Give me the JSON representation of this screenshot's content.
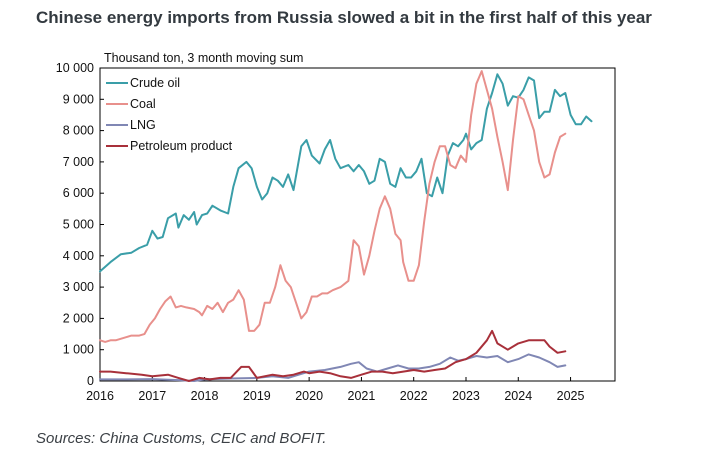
{
  "page": {
    "title": "Chinese energy imports from Russia slowed a bit in the first half of this year",
    "source": "Sources: China Customs, CEIC and BOFIT."
  },
  "chart_data": {
    "type": "line",
    "ylabel": "Thousand ton, 3 month moving sum",
    "ylim": [
      0,
      10000
    ],
    "yticks": [
      0,
      1000,
      2000,
      3000,
      4000,
      5000,
      6000,
      7000,
      8000,
      9000,
      10000
    ],
    "ytick_labels": [
      "0",
      "1 000",
      "2 000",
      "3 000",
      "4 000",
      "5 000",
      "6 000",
      "7 000",
      "8 000",
      "9 000",
      "10 000"
    ],
    "xlim": [
      2016,
      2025.85
    ],
    "xticks": [
      2016,
      2017,
      2018,
      2019,
      2020,
      2021,
      2022,
      2023,
      2024,
      2025
    ],
    "xtick_labels": [
      "2016",
      "2017",
      "2018",
      "2019",
      "2020",
      "2021",
      "2022",
      "2023",
      "2024",
      "2025"
    ],
    "legend_position": "top-left",
    "series": [
      {
        "name": "Crude oil",
        "color": "#3a9ea8",
        "points": [
          [
            2016.0,
            3500
          ],
          [
            2016.2,
            3800
          ],
          [
            2016.4,
            4050
          ],
          [
            2016.6,
            4100
          ],
          [
            2016.75,
            4250
          ],
          [
            2016.9,
            4350
          ],
          [
            2017.0,
            4800
          ],
          [
            2017.1,
            4550
          ],
          [
            2017.2,
            4600
          ],
          [
            2017.3,
            5200
          ],
          [
            2017.45,
            5350
          ],
          [
            2017.5,
            4900
          ],
          [
            2017.6,
            5300
          ],
          [
            2017.7,
            5150
          ],
          [
            2017.8,
            5400
          ],
          [
            2017.85,
            5000
          ],
          [
            2017.95,
            5300
          ],
          [
            2018.05,
            5350
          ],
          [
            2018.15,
            5600
          ],
          [
            2018.3,
            5450
          ],
          [
            2018.45,
            5350
          ],
          [
            2018.55,
            6200
          ],
          [
            2018.65,
            6800
          ],
          [
            2018.8,
            7000
          ],
          [
            2018.9,
            6800
          ],
          [
            2019.0,
            6200
          ],
          [
            2019.1,
            5800
          ],
          [
            2019.2,
            6000
          ],
          [
            2019.3,
            6500
          ],
          [
            2019.4,
            6400
          ],
          [
            2019.5,
            6200
          ],
          [
            2019.6,
            6600
          ],
          [
            2019.7,
            6100
          ],
          [
            2019.85,
            7500
          ],
          [
            2019.95,
            7700
          ],
          [
            2020.05,
            7200
          ],
          [
            2020.2,
            6950
          ],
          [
            2020.3,
            7400
          ],
          [
            2020.4,
            7700
          ],
          [
            2020.5,
            7100
          ],
          [
            2020.6,
            6800
          ],
          [
            2020.75,
            6900
          ],
          [
            2020.85,
            6700
          ],
          [
            2020.95,
            6900
          ],
          [
            2021.05,
            6700
          ],
          [
            2021.15,
            6300
          ],
          [
            2021.25,
            6400
          ],
          [
            2021.35,
            7100
          ],
          [
            2021.45,
            7000
          ],
          [
            2021.55,
            6300
          ],
          [
            2021.65,
            6200
          ],
          [
            2021.75,
            6800
          ],
          [
            2021.85,
            6500
          ],
          [
            2021.95,
            6500
          ],
          [
            2022.05,
            6700
          ],
          [
            2022.15,
            7100
          ],
          [
            2022.25,
            6000
          ],
          [
            2022.35,
            5900
          ],
          [
            2022.45,
            6500
          ],
          [
            2022.55,
            6000
          ],
          [
            2022.65,
            7200
          ],
          [
            2022.75,
            7600
          ],
          [
            2022.85,
            7500
          ],
          [
            2022.95,
            7700
          ],
          [
            2023.0,
            7900
          ],
          [
            2023.1,
            7400
          ],
          [
            2023.2,
            7600
          ],
          [
            2023.3,
            7700
          ],
          [
            2023.4,
            8700
          ],
          [
            2023.5,
            9200
          ],
          [
            2023.6,
            9800
          ],
          [
            2023.7,
            9500
          ],
          [
            2023.8,
            8800
          ],
          [
            2023.9,
            9100
          ],
          [
            2024.0,
            9050
          ],
          [
            2024.1,
            9300
          ],
          [
            2024.2,
            9700
          ],
          [
            2024.3,
            9600
          ],
          [
            2024.4,
            8400
          ],
          [
            2024.5,
            8600
          ],
          [
            2024.6,
            8600
          ],
          [
            2024.7,
            9300
          ],
          [
            2024.8,
            9100
          ],
          [
            2024.9,
            9200
          ],
          [
            2025.0,
            8500
          ],
          [
            2025.1,
            8200
          ],
          [
            2025.2,
            8200
          ],
          [
            2025.3,
            8450
          ],
          [
            2025.4,
            8300
          ]
        ]
      },
      {
        "name": "Coal",
        "color": "#e8908c",
        "points": [
          [
            2016.0,
            1300
          ],
          [
            2016.1,
            1250
          ],
          [
            2016.2,
            1300
          ],
          [
            2016.3,
            1300
          ],
          [
            2016.5,
            1400
          ],
          [
            2016.6,
            1450
          ],
          [
            2016.75,
            1450
          ],
          [
            2016.85,
            1500
          ],
          [
            2016.95,
            1800
          ],
          [
            2017.05,
            2000
          ],
          [
            2017.15,
            2300
          ],
          [
            2017.25,
            2550
          ],
          [
            2017.35,
            2700
          ],
          [
            2017.45,
            2350
          ],
          [
            2017.55,
            2400
          ],
          [
            2017.65,
            2350
          ],
          [
            2017.8,
            2300
          ],
          [
            2017.9,
            2200
          ],
          [
            2017.95,
            2100
          ],
          [
            2018.05,
            2400
          ],
          [
            2018.15,
            2300
          ],
          [
            2018.25,
            2500
          ],
          [
            2018.35,
            2200
          ],
          [
            2018.45,
            2500
          ],
          [
            2018.55,
            2600
          ],
          [
            2018.65,
            2900
          ],
          [
            2018.75,
            2600
          ],
          [
            2018.85,
            1600
          ],
          [
            2018.95,
            1600
          ],
          [
            2019.05,
            1800
          ],
          [
            2019.15,
            2500
          ],
          [
            2019.25,
            2500
          ],
          [
            2019.35,
            3000
          ],
          [
            2019.45,
            3700
          ],
          [
            2019.55,
            3200
          ],
          [
            2019.65,
            3000
          ],
          [
            2019.75,
            2500
          ],
          [
            2019.85,
            2000
          ],
          [
            2019.95,
            2200
          ],
          [
            2020.05,
            2700
          ],
          [
            2020.15,
            2700
          ],
          [
            2020.25,
            2800
          ],
          [
            2020.35,
            2800
          ],
          [
            2020.45,
            2900
          ],
          [
            2020.6,
            3000
          ],
          [
            2020.75,
            3200
          ],
          [
            2020.85,
            4500
          ],
          [
            2020.95,
            4300
          ],
          [
            2021.05,
            3400
          ],
          [
            2021.15,
            4000
          ],
          [
            2021.25,
            4800
          ],
          [
            2021.35,
            5500
          ],
          [
            2021.45,
            5900
          ],
          [
            2021.55,
            5500
          ],
          [
            2021.65,
            4700
          ],
          [
            2021.75,
            4500
          ],
          [
            2021.8,
            3800
          ],
          [
            2021.9,
            3200
          ],
          [
            2022.0,
            3200
          ],
          [
            2022.1,
            3700
          ],
          [
            2022.2,
            5100
          ],
          [
            2022.3,
            6300
          ],
          [
            2022.4,
            7000
          ],
          [
            2022.5,
            7500
          ],
          [
            2022.6,
            7500
          ],
          [
            2022.7,
            6900
          ],
          [
            2022.8,
            6800
          ],
          [
            2022.9,
            7200
          ],
          [
            2023.0,
            7000
          ],
          [
            2023.1,
            8500
          ],
          [
            2023.2,
            9500
          ],
          [
            2023.3,
            9900
          ],
          [
            2023.4,
            9300
          ],
          [
            2023.5,
            8700
          ],
          [
            2023.6,
            7800
          ],
          [
            2023.7,
            7000
          ],
          [
            2023.8,
            6100
          ],
          [
            2023.9,
            7700
          ],
          [
            2024.0,
            9100
          ],
          [
            2024.1,
            9000
          ],
          [
            2024.2,
            8500
          ],
          [
            2024.3,
            8000
          ],
          [
            2024.4,
            7000
          ],
          [
            2024.5,
            6500
          ],
          [
            2024.6,
            6600
          ],
          [
            2024.7,
            7300
          ],
          [
            2024.8,
            7800
          ],
          [
            2024.9,
            7900
          ]
        ]
      },
      {
        "name": "LNG",
        "color": "#8087b4",
        "points": [
          [
            2016.0,
            50
          ],
          [
            2016.5,
            50
          ],
          [
            2017.0,
            60
          ],
          [
            2017.5,
            30
          ],
          [
            2017.8,
            0
          ],
          [
            2018.0,
            50
          ],
          [
            2018.5,
            80
          ],
          [
            2019.0,
            100
          ],
          [
            2019.3,
            150
          ],
          [
            2019.6,
            100
          ],
          [
            2019.8,
            200
          ],
          [
            2020.0,
            300
          ],
          [
            2020.3,
            350
          ],
          [
            2020.6,
            450
          ],
          [
            2020.8,
            550
          ],
          [
            2020.95,
            600
          ],
          [
            2021.1,
            400
          ],
          [
            2021.3,
            300
          ],
          [
            2021.5,
            400
          ],
          [
            2021.7,
            500
          ],
          [
            2021.9,
            400
          ],
          [
            2022.1,
            400
          ],
          [
            2022.3,
            450
          ],
          [
            2022.5,
            550
          ],
          [
            2022.7,
            750
          ],
          [
            2022.85,
            650
          ],
          [
            2023.0,
            700
          ],
          [
            2023.2,
            800
          ],
          [
            2023.4,
            750
          ],
          [
            2023.6,
            800
          ],
          [
            2023.8,
            600
          ],
          [
            2024.0,
            700
          ],
          [
            2024.2,
            850
          ],
          [
            2024.4,
            750
          ],
          [
            2024.6,
            600
          ],
          [
            2024.75,
            450
          ],
          [
            2024.9,
            500
          ]
        ]
      },
      {
        "name": "Petroleum product",
        "color": "#a8303a",
        "points": [
          [
            2016.0,
            300
          ],
          [
            2016.2,
            300
          ],
          [
            2016.5,
            250
          ],
          [
            2016.8,
            200
          ],
          [
            2017.0,
            150
          ],
          [
            2017.3,
            200
          ],
          [
            2017.5,
            100
          ],
          [
            2017.7,
            0
          ],
          [
            2017.9,
            100
          ],
          [
            2018.1,
            50
          ],
          [
            2018.3,
            100
          ],
          [
            2018.5,
            100
          ],
          [
            2018.7,
            450
          ],
          [
            2018.85,
            450
          ],
          [
            2019.0,
            100
          ],
          [
            2019.3,
            200
          ],
          [
            2019.5,
            150
          ],
          [
            2019.7,
            200
          ],
          [
            2019.9,
            300
          ],
          [
            2020.0,
            250
          ],
          [
            2020.2,
            300
          ],
          [
            2020.4,
            250
          ],
          [
            2020.6,
            150
          ],
          [
            2020.8,
            100
          ],
          [
            2021.0,
            200
          ],
          [
            2021.2,
            300
          ],
          [
            2021.4,
            300
          ],
          [
            2021.6,
            250
          ],
          [
            2021.8,
            300
          ],
          [
            2022.0,
            350
          ],
          [
            2022.2,
            300
          ],
          [
            2022.4,
            350
          ],
          [
            2022.6,
            400
          ],
          [
            2022.8,
            600
          ],
          [
            2023.0,
            700
          ],
          [
            2023.2,
            900
          ],
          [
            2023.4,
            1300
          ],
          [
            2023.5,
            1600
          ],
          [
            2023.6,
            1200
          ],
          [
            2023.8,
            1000
          ],
          [
            2024.0,
            1200
          ],
          [
            2024.2,
            1300
          ],
          [
            2024.35,
            1300
          ],
          [
            2024.5,
            1300
          ],
          [
            2024.6,
            1100
          ],
          [
            2024.75,
            900
          ],
          [
            2024.9,
            950
          ]
        ]
      }
    ]
  }
}
